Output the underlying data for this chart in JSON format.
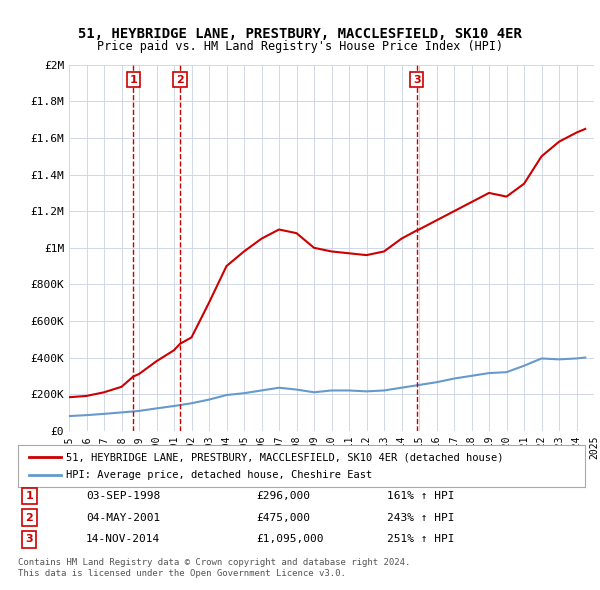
{
  "title": "51, HEYBRIDGE LANE, PRESTBURY, MACCLESFIELD, SK10 4ER",
  "subtitle": "Price paid vs. HM Land Registry's House Price Index (HPI)",
  "transactions": [
    {
      "num": 1,
      "date_label": "03-SEP-1998",
      "date_x": 1998.67,
      "price": 296000,
      "pct": "161%",
      "marker_price": 296000
    },
    {
      "num": 2,
      "date_label": "04-MAY-2001",
      "date_x": 2001.34,
      "price": 475000,
      "pct": "243%",
      "marker_price": 475000
    },
    {
      "num": 3,
      "date_label": "14-NOV-2014",
      "date_x": 2014.87,
      "price": 1095000,
      "pct": "251%",
      "marker_price": 1095000
    }
  ],
  "legend_property": "51, HEYBRIDGE LANE, PRESTBURY, MACCLESFIELD, SK10 4ER (detached house)",
  "legend_hpi": "HPI: Average price, detached house, Cheshire East",
  "footer1": "Contains HM Land Registry data © Crown copyright and database right 2024.",
  "footer2": "This data is licensed under the Open Government Licence v3.0.",
  "ylim": [
    0,
    2000000
  ],
  "xlim": [
    1995,
    2025
  ],
  "property_color": "#cc0000",
  "hpi_color": "#6699cc",
  "dashed_color": "#cc0000",
  "background_color": "#ffffff",
  "grid_color": "#d0d8e8",
  "marker_box_color": "#cc0000",
  "yticks": [
    0,
    200000,
    400000,
    600000,
    800000,
    1000000,
    1200000,
    1400000,
    1600000,
    1800000,
    2000000
  ],
  "ytick_labels": [
    "£0",
    "£200K",
    "£400K",
    "£600K",
    "£800K",
    "£1M",
    "£1.2M",
    "£1.4M",
    "£1.6M",
    "£1.8M",
    "£2M"
  ],
  "xticks": [
    1995,
    1996,
    1997,
    1998,
    1999,
    2000,
    2001,
    2002,
    2003,
    2004,
    2005,
    2006,
    2007,
    2008,
    2009,
    2010,
    2011,
    2012,
    2013,
    2014,
    2015,
    2016,
    2017,
    2018,
    2019,
    2020,
    2021,
    2022,
    2023,
    2024,
    2025
  ],
  "property_line": {
    "x": [
      1995.0,
      1996.0,
      1997.0,
      1998.0,
      1998.67,
      1999.0,
      2000.0,
      2001.0,
      2001.34,
      2002.0,
      2003.0,
      2004.0,
      2005.0,
      2006.0,
      2007.0,
      2008.0,
      2009.0,
      2010.0,
      2011.0,
      2012.0,
      2013.0,
      2014.0,
      2014.87,
      2015.0,
      2016.0,
      2017.0,
      2018.0,
      2019.0,
      2020.0,
      2021.0,
      2022.0,
      2023.0,
      2024.0,
      2024.5
    ],
    "y": [
      183000,
      190000,
      210000,
      240000,
      296000,
      310000,
      380000,
      440000,
      475000,
      510000,
      700000,
      900000,
      980000,
      1050000,
      1100000,
      1080000,
      1000000,
      980000,
      970000,
      960000,
      980000,
      1050000,
      1095000,
      1100000,
      1150000,
      1200000,
      1250000,
      1300000,
      1280000,
      1350000,
      1500000,
      1580000,
      1630000,
      1650000
    ]
  },
  "hpi_line": {
    "x": [
      1995.0,
      1996.0,
      1997.0,
      1998.0,
      1999.0,
      2000.0,
      2001.0,
      2002.0,
      2003.0,
      2004.0,
      2005.0,
      2006.0,
      2007.0,
      2008.0,
      2009.0,
      2010.0,
      2011.0,
      2012.0,
      2013.0,
      2014.0,
      2015.0,
      2016.0,
      2017.0,
      2018.0,
      2019.0,
      2020.0,
      2021.0,
      2022.0,
      2023.0,
      2024.0,
      2024.5
    ],
    "y": [
      80000,
      85000,
      92000,
      100000,
      108000,
      122000,
      135000,
      150000,
      170000,
      195000,
      205000,
      220000,
      235000,
      225000,
      210000,
      220000,
      220000,
      215000,
      220000,
      235000,
      250000,
      265000,
      285000,
      300000,
      315000,
      320000,
      355000,
      395000,
      390000,
      395000,
      400000
    ]
  }
}
